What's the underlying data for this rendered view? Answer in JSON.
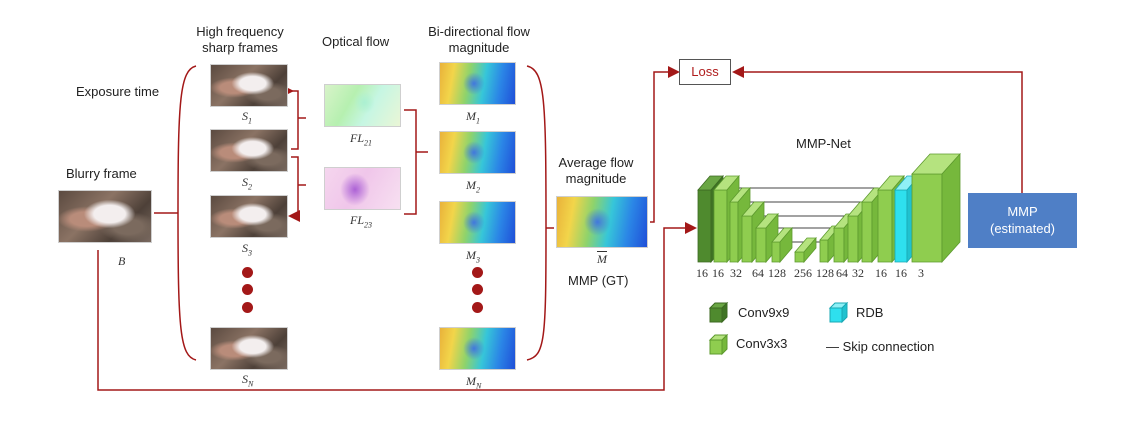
{
  "labels": {
    "high_freq_line1": "High frequency",
    "high_freq_line2": "sharp frames",
    "optical_flow": "Optical flow",
    "bidir_line1": "Bi-directional flow",
    "bidir_line2": "magnitude",
    "exposure_time": "Exposure time",
    "blurry_frame": "Blurry frame",
    "blurry_symbol": "B",
    "avg_line1": "Average flow",
    "avg_line2": "magnitude",
    "mmp_gt": "MMP (GT)",
    "loss": "Loss",
    "mmp_net": "MMP-Net",
    "mmp_est_line1": "MMP",
    "mmp_est_line2": "(estimated)"
  },
  "sharp_frames": [
    {
      "base": "S",
      "sub": "1"
    },
    {
      "base": "S",
      "sub": "2"
    },
    {
      "base": "S",
      "sub": "3"
    },
    {
      "base": "S",
      "sub": "N"
    }
  ],
  "optical_flows": [
    {
      "base": "FL",
      "sub": "21"
    },
    {
      "base": "FL",
      "sub": "23"
    }
  ],
  "magnitudes": [
    {
      "base": "M",
      "sub": "1"
    },
    {
      "base": "M",
      "sub": "2"
    },
    {
      "base": "M",
      "sub": "3"
    },
    {
      "base": "M",
      "sub": "N"
    }
  ],
  "avg_symbol": "M",
  "channels": [
    "16",
    "16",
    "32",
    "64",
    "128",
    "256",
    "128",
    "64",
    "32",
    "16",
    "16",
    "3"
  ],
  "legend": {
    "conv9": "Conv9x9",
    "conv3": "Conv3x3",
    "rdb": "RDB",
    "skip": "— Skip connection"
  },
  "colors": {
    "arrow": "#a31818",
    "conv9": "#4f8a2e",
    "conv3": "#8fcd4f",
    "rdb": "#2ee0ee",
    "mmp_box": "#4f7fc6"
  }
}
